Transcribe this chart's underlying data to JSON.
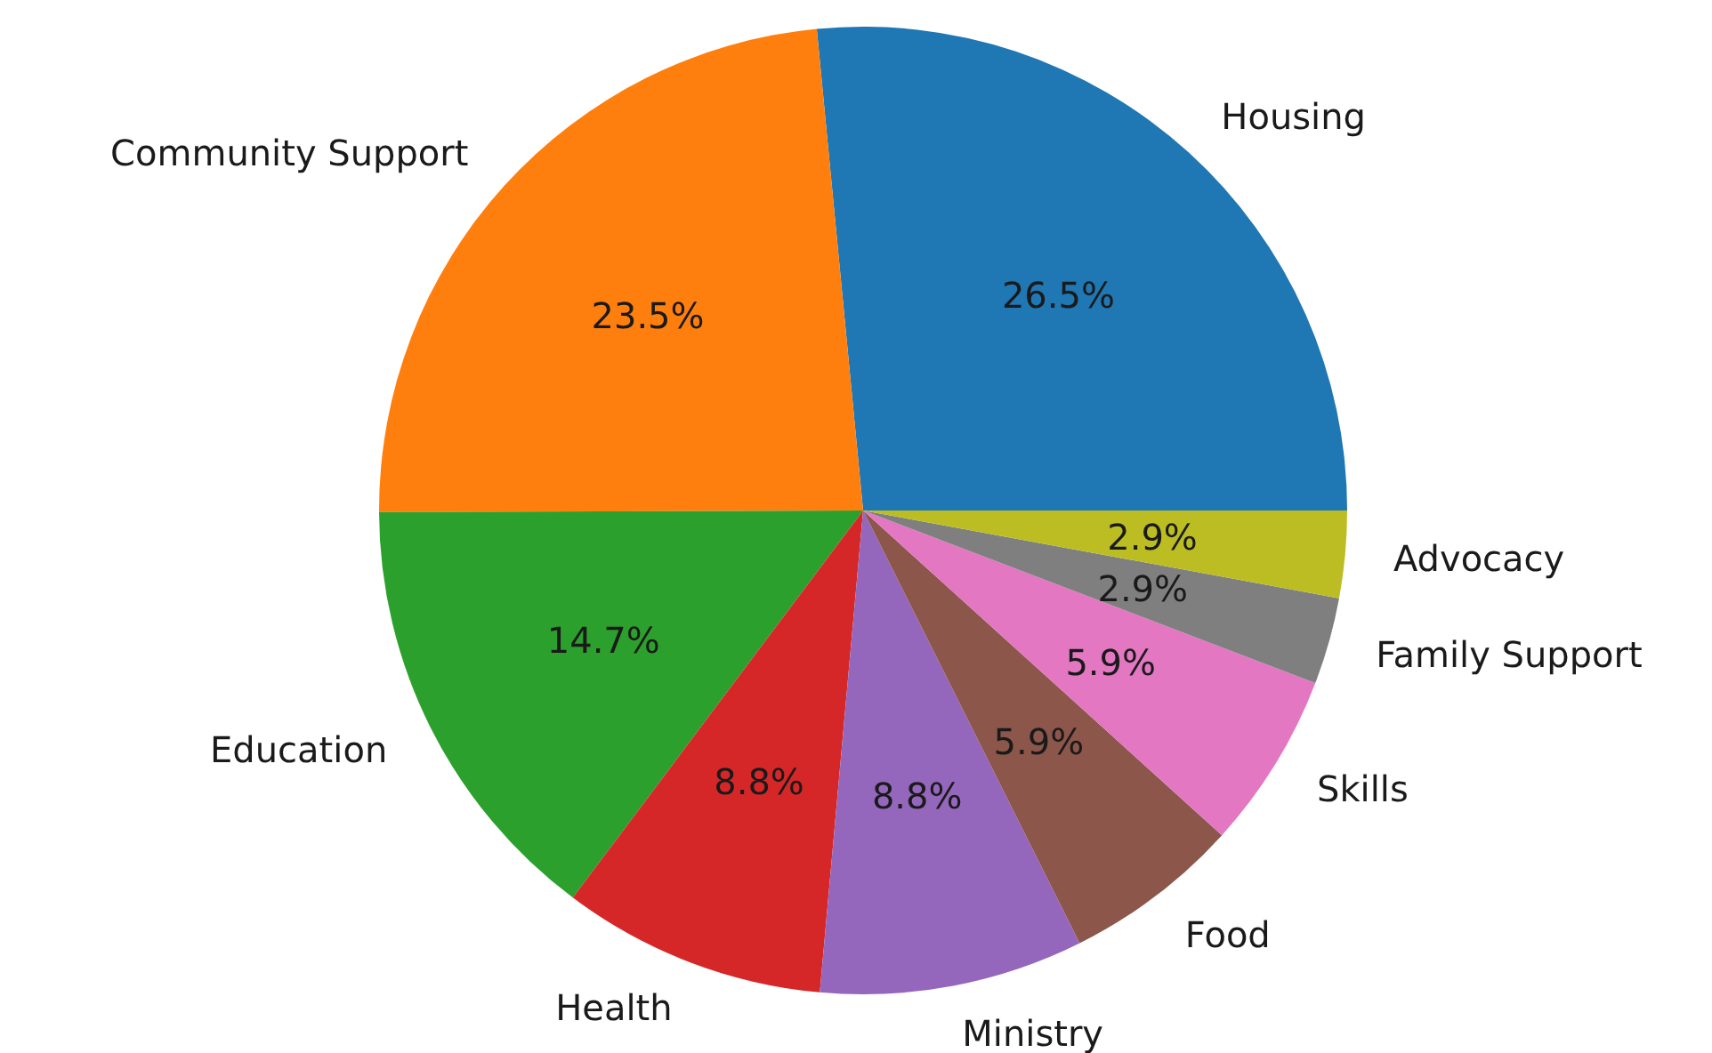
{
  "chart_data": {
    "type": "pie",
    "categories": [
      "Housing",
      "Community Support",
      "Education",
      "Health",
      "Ministry",
      "Food",
      "Skills",
      "Family Support",
      "Advocacy"
    ],
    "values": [
      26.5,
      23.5,
      14.7,
      8.8,
      8.8,
      5.9,
      5.9,
      2.9,
      2.9
    ],
    "value_labels": [
      "26.5%",
      "23.5%",
      "14.7%",
      "8.8%",
      "8.8%",
      "5.9%",
      "5.9%",
      "2.9%",
      "2.9%"
    ],
    "colors": [
      "#1f77b4",
      "#ff7f0e",
      "#2ca02c",
      "#d62728",
      "#9467bd",
      "#8c564b",
      "#e377c2",
      "#7f7f7f",
      "#bcbd22"
    ]
  }
}
